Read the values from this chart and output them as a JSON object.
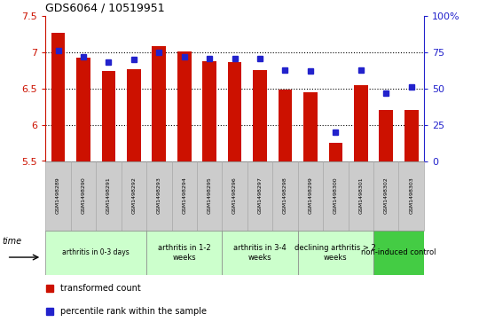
{
  "title": "GDS6064 / 10519951",
  "samples": [
    "GSM1498289",
    "GSM1498290",
    "GSM1498291",
    "GSM1498292",
    "GSM1498293",
    "GSM1498294",
    "GSM1498295",
    "GSM1498296",
    "GSM1498297",
    "GSM1498298",
    "GSM1498299",
    "GSM1498300",
    "GSM1498301",
    "GSM1498302",
    "GSM1498303"
  ],
  "transformed_count": [
    7.27,
    6.93,
    6.74,
    6.77,
    7.09,
    7.01,
    6.88,
    6.87,
    6.75,
    6.48,
    6.45,
    5.75,
    6.55,
    6.21,
    6.21
  ],
  "percentile_rank": [
    76,
    72,
    68,
    70,
    75,
    72,
    71,
    71,
    71,
    63,
    62,
    20,
    63,
    47,
    51
  ],
  "ylim_left": [
    5.5,
    7.5
  ],
  "ylim_right": [
    0,
    100
  ],
  "yticks_left": [
    5.5,
    6.0,
    6.5,
    7.0,
    7.5
  ],
  "yticks_right": [
    0,
    25,
    50,
    75,
    100
  ],
  "bar_color": "#CC1100",
  "dot_color": "#2222CC",
  "groups": [
    {
      "label": "arthritis in 0-3 days",
      "start": 0,
      "end": 3,
      "color": "#ccffcc"
    },
    {
      "label": "arthritis in 1-2\nweeks",
      "start": 4,
      "end": 6,
      "color": "#ccffcc"
    },
    {
      "label": "arthritis in 3-4\nweeks",
      "start": 7,
      "end": 9,
      "color": "#ccffcc"
    },
    {
      "label": "declining arthritis > 2\nweeks",
      "start": 10,
      "end": 12,
      "color": "#ccffcc"
    },
    {
      "label": "non-induced control",
      "start": 13,
      "end": 14,
      "color": "#44cc44"
    }
  ],
  "legend_red_label": "transformed count",
  "legend_blue_label": "percentile rank within the sample",
  "left_tick_color": "#CC1100",
  "right_tick_color": "#2222CC",
  "sample_box_color": "#cccccc",
  "sample_box_edge": "#aaaaaa"
}
